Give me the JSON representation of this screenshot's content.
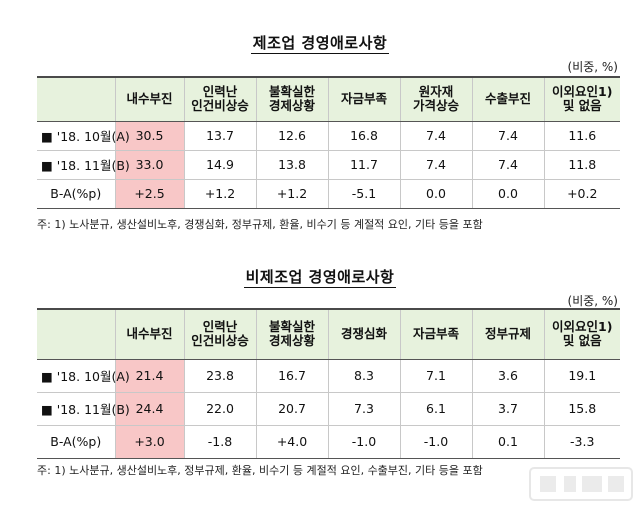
{
  "manufacturing": {
    "title": "제조업 경영애로사항",
    "unit": "(비중, %)",
    "headers": [
      {
        "l1": "",
        "l2": ""
      },
      {
        "l1": "내수부진",
        "l2": ""
      },
      {
        "l1": "인력난",
        "l2": "인건비상승"
      },
      {
        "l1": "불확실한",
        "l2": "경제상황"
      },
      {
        "l1": "자금부족",
        "l2": ""
      },
      {
        "l1": "원자재",
        "l2": "가격상승"
      },
      {
        "l1": "수출부진",
        "l2": ""
      },
      {
        "l1": "이외요인1)",
        "l2": "및 없음"
      }
    ],
    "rows": [
      {
        "label": "■ '18. 10월(A)",
        "values": [
          "30.5",
          "13.7",
          "12.6",
          "16.8",
          "7.4",
          "7.4",
          "11.6"
        ]
      },
      {
        "label": "■ '18. 11월(B)",
        "values": [
          "33.0",
          "14.9",
          "13.8",
          "11.7",
          "7.4",
          "7.4",
          "11.8"
        ]
      },
      {
        "label": "B-A(%p)",
        "values": [
          "+2.5",
          "+1.2",
          "+1.2",
          "-5.1",
          "0.0",
          "0.0",
          "+0.2"
        ]
      }
    ],
    "note": "주: 1) 노사분규, 생산설비노후, 경쟁심화, 정부규제, 환율, 비수기 등 계절적 요인, 기타 등을 포함"
  },
  "non_manufacturing": {
    "title": "비제조업 경영애로사항",
    "unit": "(비중, %)",
    "headers": [
      {
        "l1": "",
        "l2": ""
      },
      {
        "l1": "내수부진",
        "l2": ""
      },
      {
        "l1": "인력난",
        "l2": "인건비상승"
      },
      {
        "l1": "불확실한",
        "l2": "경제상황"
      },
      {
        "l1": "경쟁심화",
        "l2": ""
      },
      {
        "l1": "자금부족",
        "l2": ""
      },
      {
        "l1": "정부규제",
        "l2": ""
      },
      {
        "l1": "이외요인1)",
        "l2": "및 없음"
      }
    ],
    "rows": [
      {
        "label": "■ '18. 10월(A)",
        "values": [
          "21.4",
          "23.8",
          "16.7",
          "8.3",
          "7.1",
          "3.6",
          "19.1"
        ]
      },
      {
        "label": "■ '18. 11월(B)",
        "values": [
          "24.4",
          "22.0",
          "20.7",
          "7.3",
          "6.1",
          "3.7",
          "15.8"
        ]
      },
      {
        "label": "B-A(%p)",
        "values": [
          "+3.0",
          "-1.8",
          "+4.0",
          "-1.0",
          "-1.0",
          "0.1",
          "-3.3"
        ]
      }
    ],
    "note": "주: 1) 노사분규, 생산설비노후, 정부규제, 환율, 비수기 등 계절적 요인, 수출부진, 기타 등을 포함"
  },
  "colors": {
    "header_bg": "#e7f2dd",
    "highlight": "#f8c7c7"
  }
}
